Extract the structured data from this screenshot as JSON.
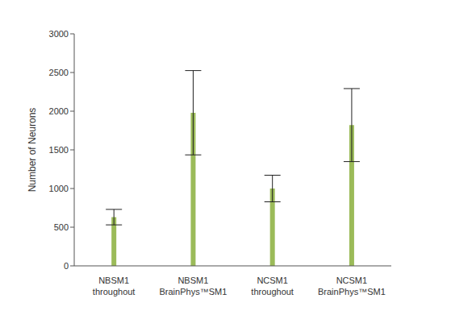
{
  "chart_data": {
    "type": "bar",
    "categories": [
      "NBSM1 throughout",
      "NBSM1 BrainPhys™SM1",
      "NCSM1 throughout",
      "NCSM1 BrainPhys™SM1"
    ],
    "values": [
      630,
      1980,
      1000,
      1820
    ],
    "errors": [
      100,
      545,
      172,
      472
    ],
    "color": "#9bbb59",
    "ylim": [
      0,
      3000
    ],
    "yticks": [
      0,
      500,
      1000,
      1500,
      2000,
      2500,
      3000
    ],
    "ylabel": "Number of Neurons",
    "grid": false
  }
}
